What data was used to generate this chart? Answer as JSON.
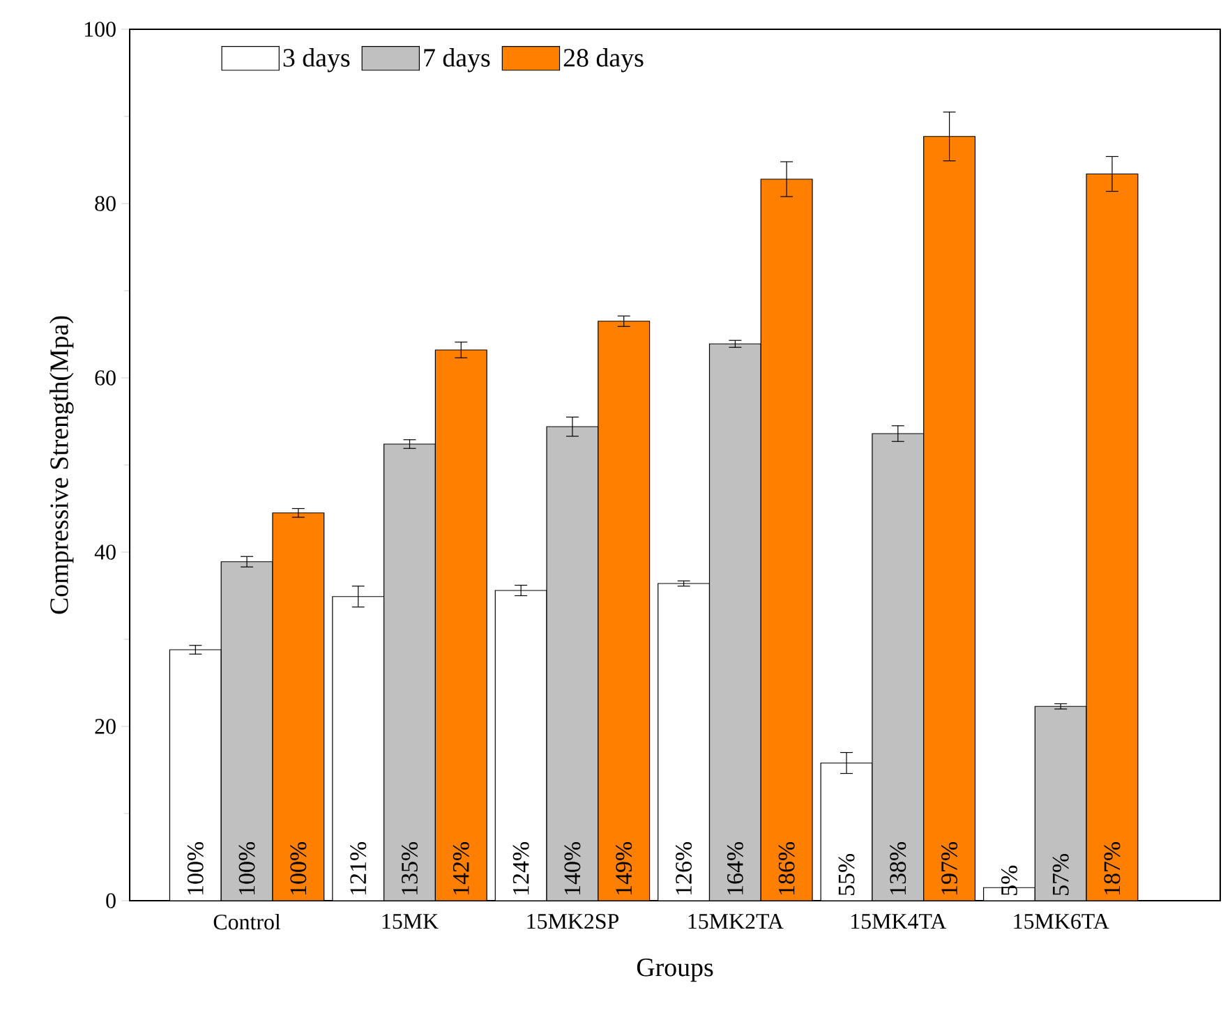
{
  "chart_data": {
    "type": "bar",
    "xlabel": "Groups",
    "ylabel": "Compressive Strength(Mpa)",
    "categories": [
      "Control",
      "15MK",
      "15MK2SP",
      "15MK2TA",
      "15MK4TA",
      "15MK6TA"
    ],
    "series": [
      {
        "name": "3 days",
        "color": "#ffffff",
        "values": [
          28.8,
          34.9,
          35.6,
          36.4,
          15.8,
          1.5
        ],
        "errors": [
          0.5,
          1.2,
          0.6,
          0.3,
          1.2,
          null
        ]
      },
      {
        "name": "7 days",
        "color": "#c0c0c0",
        "values": [
          38.9,
          52.4,
          54.4,
          63.9,
          53.6,
          22.3
        ],
        "errors": [
          0.6,
          0.5,
          1.1,
          0.4,
          0.9,
          0.3
        ]
      },
      {
        "name": "28 days",
        "color": "#ff8000",
        "values": [
          44.5,
          63.2,
          66.5,
          82.8,
          87.7,
          83.4
        ],
        "errors": [
          0.5,
          0.9,
          0.6,
          2.0,
          2.8,
          2.0
        ]
      }
    ],
    "annotations": [
      "100%",
      "121%",
      "124%",
      "126%",
      "55%",
      "5%",
      "100%",
      "135%",
      "140%",
      "164%",
      "138%",
      "57%",
      "100%",
      "142%",
      "149%",
      "186%",
      "197%",
      "187%"
    ],
    "ylim": [
      0,
      100
    ],
    "yticks": [
      0,
      20,
      40,
      60,
      80,
      100
    ],
    "legend": "top",
    "grid": false
  }
}
